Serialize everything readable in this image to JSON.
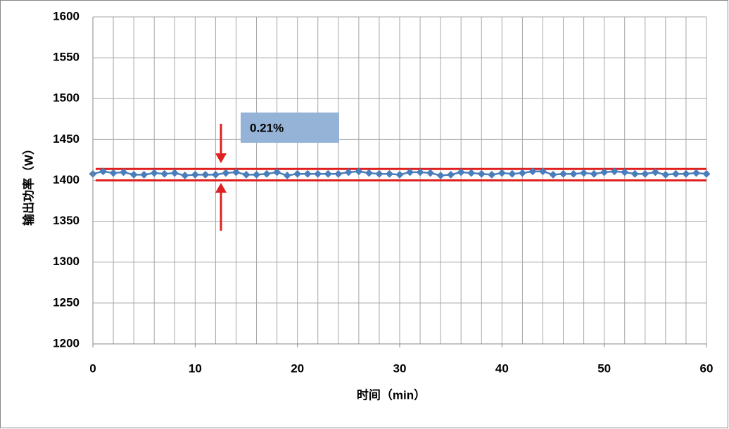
{
  "chart_data": {
    "type": "line",
    "xlabel": "时间（min）",
    "ylabel": "输出功率（W）",
    "x": [
      0,
      1,
      2,
      3,
      4,
      5,
      6,
      7,
      8,
      9,
      10,
      11,
      12,
      13,
      14,
      15,
      16,
      17,
      18,
      19,
      20,
      21,
      22,
      23,
      24,
      25,
      26,
      27,
      28,
      29,
      30,
      31,
      32,
      33,
      34,
      35,
      36,
      37,
      38,
      39,
      40,
      41,
      42,
      43,
      44,
      45,
      46,
      47,
      48,
      49,
      50,
      51,
      52,
      53,
      54,
      55,
      56,
      57,
      58,
      59,
      60
    ],
    "series": [
      {
        "color": "#4a7ebb",
        "values": [
          1408,
          1411,
          1409,
          1410,
          1407,
          1407,
          1409,
          1408,
          1409,
          1406,
          1407,
          1407,
          1407,
          1409,
          1410,
          1407,
          1407,
          1408,
          1410,
          1406,
          1408,
          1408,
          1408,
          1408,
          1408,
          1410,
          1411,
          1409,
          1408,
          1408,
          1407,
          1410,
          1410,
          1409,
          1406,
          1407,
          1410,
          1409,
          1408,
          1407,
          1409,
          1408,
          1409,
          1411,
          1411,
          1407,
          1408,
          1408,
          1409,
          1408,
          1410,
          1411,
          1410,
          1408,
          1408,
          1410,
          1407,
          1408,
          1408,
          1409,
          1408
        ]
      }
    ],
    "xlim": [
      0,
      60
    ],
    "xticks": [
      0,
      10,
      20,
      30,
      40,
      50,
      60
    ],
    "xgrid": [
      0,
      2,
      4,
      6,
      8,
      10,
      12,
      14,
      16,
      18,
      20,
      22,
      24,
      26,
      28,
      30,
      32,
      34,
      36,
      38,
      40,
      42,
      44,
      46,
      48,
      50,
      52,
      54,
      56,
      58,
      60
    ],
    "ylim": [
      1200,
      1600
    ],
    "yticks": [
      1200,
      1250,
      1300,
      1350,
      1400,
      1450,
      1500,
      1550,
      1600
    ],
    "grid": true,
    "reference_lines": {
      "color": "#e02020",
      "values": [
        1400,
        1414
      ]
    },
    "annotation": "0.21%"
  }
}
